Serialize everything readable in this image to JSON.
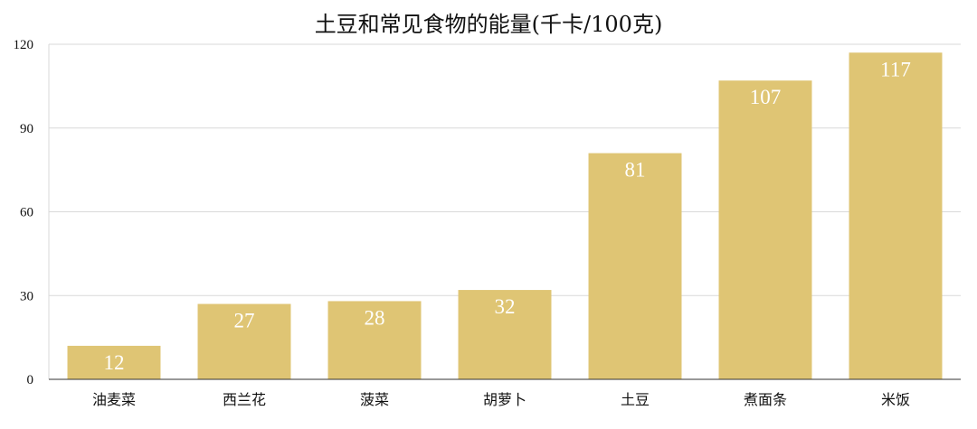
{
  "colors": {
    "bar": "#dfc574",
    "grid": "#d9d9d9",
    "axis": "#333333",
    "value_label": "#ffffff"
  },
  "chart_data": {
    "type": "bar",
    "title": "土豆和常见食物的能量(千卡/100克)",
    "categories": [
      "油麦菜",
      "西兰花",
      "菠菜",
      "胡萝卜",
      "土豆",
      "煮面条",
      "米饭"
    ],
    "values": [
      12,
      27,
      28,
      32,
      81,
      107,
      117
    ],
    "xlabel": "",
    "ylabel": "",
    "ylim": [
      0,
      120
    ],
    "yticks": [
      0,
      30,
      60,
      90,
      120
    ],
    "grid": true,
    "data_labels": true
  }
}
